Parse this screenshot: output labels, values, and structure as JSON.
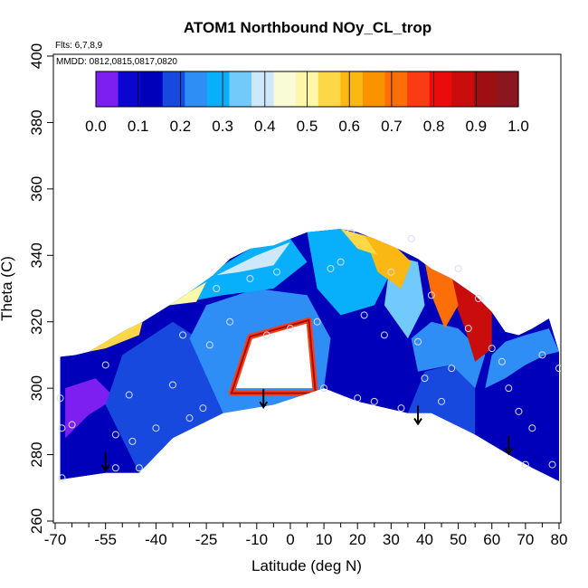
{
  "chart_data": {
    "type": "heatmap",
    "title": "ATOM1 Northbound NOy_CL_trop",
    "annotations": {
      "flights": "Flts: 6,7,8,9",
      "dates": "MMDD: 0812,0815,0817,0820"
    },
    "xlabel": "Latitude (deg N)",
    "ylabel": "Theta (C)",
    "xlim": [
      -70,
      80
    ],
    "ylim": [
      260,
      400
    ],
    "x_tick_labels": [
      -70,
      -55,
      -40,
      -25,
      -10,
      0,
      10,
      20,
      30,
      40,
      50,
      60,
      70,
      80
    ],
    "x_minor_ticks": [
      -65,
      -60,
      -50,
      -45,
      -35,
      -30,
      -20,
      -15,
      -5,
      5,
      15,
      25,
      35,
      45,
      55,
      65,
      75
    ],
    "y_ticks": [
      260,
      280,
      300,
      320,
      340,
      360,
      380,
      400
    ],
    "colorbar": {
      "min": 0.0,
      "max": 1.0,
      "ticks": [
        "0.0",
        "0.1",
        "0.2",
        "0.3",
        "0.4",
        "0.5",
        "0.6",
        "0.7",
        "0.8",
        "0.9",
        "1.0"
      ],
      "colors": [
        "#7d1ff0",
        "#0a06cf",
        "#0000ba",
        "#1749de",
        "#2f8ef6",
        "#08b0fb",
        "#72c9fb",
        "#cde8fb",
        "#f8fbd6",
        "#fef6a9",
        "#fcd848",
        "#fbb813",
        "#fb9200",
        "#fc6e07",
        "#fb3b13",
        "#ec0b0b",
        "#c90c0c",
        "#9e0f12",
        "#8c1620"
      ]
    },
    "field_outline_bottom": [
      [
        -68.5,
        272.5
      ],
      [
        -55,
        274.5
      ],
      [
        -45,
        274.5
      ],
      [
        -35,
        285
      ],
      [
        -20,
        292.5
      ],
      [
        -5,
        295
      ],
      [
        10,
        300
      ],
      [
        20,
        296
      ],
      [
        35,
        292.5
      ],
      [
        42,
        292.5
      ],
      [
        55,
        286
      ],
      [
        65,
        280
      ],
      [
        72,
        276
      ],
      [
        80,
        272
      ]
    ],
    "field_outline_top": [
      [
        80,
        311
      ],
      [
        77,
        321
      ],
      [
        72,
        318
      ],
      [
        68,
        316
      ],
      [
        64,
        317
      ],
      [
        60,
        323
      ],
      [
        55,
        328
      ],
      [
        48,
        333
      ],
      [
        42,
        336
      ],
      [
        38,
        339
      ],
      [
        32,
        342
      ],
      [
        25,
        345
      ],
      [
        20,
        347
      ],
      [
        15,
        348
      ],
      [
        5,
        347
      ],
      [
        0,
        345
      ],
      [
        -5,
        343
      ],
      [
        -12,
        342
      ],
      [
        -18,
        339
      ],
      [
        -23,
        334
      ],
      [
        -30,
        329
      ],
      [
        -36,
        325
      ],
      [
        -44,
        320
      ],
      [
        -50,
        317
      ],
      [
        -55,
        314
      ],
      [
        -60,
        311
      ],
      [
        -64,
        310
      ],
      [
        -68.5,
        309.5
      ]
    ],
    "regions": [
      {
        "value": 0.12,
        "points": [
          [
            -68.5,
            272.5
          ],
          [
            -55,
            274.5
          ],
          [
            -45,
            274.5
          ],
          [
            -40,
            285
          ],
          [
            -50,
            300
          ],
          [
            -60,
            305
          ],
          [
            -68.5,
            309.5
          ]
        ]
      },
      {
        "value": 0.03,
        "points": [
          [
            -67,
            285
          ],
          [
            -60,
            292
          ],
          [
            -52,
            297
          ],
          [
            -58,
            303
          ],
          [
            -67,
            300
          ]
        ]
      },
      {
        "value": 0.16,
        "points": [
          [
            -45,
            274.5
          ],
          [
            -35,
            285
          ],
          [
            -20,
            292.5
          ],
          [
            -20,
            310
          ],
          [
            -35,
            320
          ],
          [
            -50,
            310
          ],
          [
            -55,
            295
          ]
        ]
      },
      {
        "value": 0.22,
        "points": [
          [
            -20,
            292.5
          ],
          [
            -5,
            295
          ],
          [
            10,
            300
          ],
          [
            12,
            315
          ],
          [
            5,
            328
          ],
          [
            -10,
            330
          ],
          [
            -25,
            325
          ],
          [
            -30,
            315
          ]
        ]
      },
      {
        "value": 0.3,
        "points": [
          [
            -36,
            325
          ],
          [
            -25,
            334
          ],
          [
            -12,
            342
          ],
          [
            0,
            345
          ],
          [
            5,
            338
          ],
          [
            -5,
            330
          ],
          [
            -20,
            328
          ]
        ]
      },
      {
        "value": 0.42,
        "points": [
          [
            -22,
            334
          ],
          [
            -10,
            340
          ],
          [
            0,
            344
          ],
          [
            -5,
            337
          ],
          [
            -15,
            335
          ]
        ]
      },
      {
        "value": 0.15,
        "points": [
          [
            10,
            300
          ],
          [
            20,
            296
          ],
          [
            35,
            292.5
          ],
          [
            38,
            305
          ],
          [
            30,
            320
          ],
          [
            18,
            322
          ],
          [
            12,
            312
          ]
        ]
      },
      {
        "value": 0.3,
        "points": [
          [
            5,
            347
          ],
          [
            15,
            348
          ],
          [
            25,
            345
          ],
          [
            30,
            335
          ],
          [
            25,
            325
          ],
          [
            15,
            322
          ],
          [
            8,
            330
          ]
        ]
      },
      {
        "value": 0.35,
        "points": [
          [
            30,
            340
          ],
          [
            38,
            338
          ],
          [
            40,
            325
          ],
          [
            35,
            315
          ],
          [
            28,
            325
          ]
        ]
      },
      {
        "value": 0.18,
        "points": [
          [
            35,
            292.5
          ],
          [
            42,
            292.5
          ],
          [
            55,
            286
          ],
          [
            55,
            300
          ],
          [
            48,
            307
          ],
          [
            40,
            305
          ]
        ]
      },
      {
        "value": 0.26,
        "points": [
          [
            38,
            305
          ],
          [
            48,
            307
          ],
          [
            55,
            300
          ],
          [
            58,
            310
          ],
          [
            50,
            318
          ],
          [
            42,
            320
          ],
          [
            36,
            315
          ]
        ]
      },
      {
        "value": 0.12,
        "points": [
          [
            55,
            286
          ],
          [
            65,
            280
          ],
          [
            72,
            276
          ],
          [
            80,
            272
          ],
          [
            80,
            300
          ],
          [
            72,
            305
          ],
          [
            64,
            303
          ],
          [
            58,
            300
          ]
        ]
      },
      {
        "value": 0.24,
        "points": [
          [
            58,
            300
          ],
          [
            64,
            303
          ],
          [
            70,
            307
          ],
          [
            76,
            310
          ],
          [
            80,
            311
          ],
          [
            77,
            318
          ],
          [
            70,
            316
          ],
          [
            64,
            314
          ],
          [
            60,
            310
          ]
        ]
      },
      {
        "value": 0.62,
        "points": [
          [
            22,
            346
          ],
          [
            30,
            344
          ],
          [
            36,
            338
          ],
          [
            33,
            330
          ],
          [
            26,
            335
          ]
        ]
      },
      {
        "value": 0.55,
        "points": [
          [
            15,
            348
          ],
          [
            22,
            346
          ],
          [
            26,
            340
          ],
          [
            20,
            342
          ]
        ]
      },
      {
        "value": 0.85,
        "points": [
          [
            48,
            333
          ],
          [
            55,
            328
          ],
          [
            60,
            323
          ],
          [
            60,
            312
          ],
          [
            55,
            308
          ],
          [
            52,
            318
          ],
          [
            49,
            326
          ]
        ]
      },
      {
        "value": 0.7,
        "points": [
          [
            40,
            338
          ],
          [
            48,
            334
          ],
          [
            50,
            325
          ],
          [
            46,
            318
          ],
          [
            42,
            328
          ]
        ]
      },
      {
        "value": 0.55,
        "points": [
          [
            -60,
            311
          ],
          [
            -50,
            317
          ],
          [
            -44,
            320
          ],
          [
            -45,
            316
          ],
          [
            -55,
            312
          ]
        ]
      },
      {
        "value": 0.5,
        "points": [
          [
            -36,
            325
          ],
          [
            -30,
            329
          ],
          [
            -25,
            332
          ],
          [
            -28,
            326
          ]
        ]
      },
      {
        "value": 0.0,
        "points": [
          [
            -17.5,
            300
          ],
          [
            7.5,
            300
          ],
          [
            6,
            320
          ],
          [
            -12,
            315
          ]
        ]
      }
    ],
    "hole_outline": [
      [
        -17.5,
        298.5
      ],
      [
        7.5,
        298.5
      ],
      [
        5.5,
        320.5
      ],
      [
        -12,
        315.5
      ]
    ],
    "samples": [
      [
        -68.5,
        297
      ],
      [
        -68,
        288
      ],
      [
        -65,
        289
      ],
      [
        -68,
        273
      ],
      [
        -55,
        307
      ],
      [
        -52,
        286
      ],
      [
        -52,
        276
      ],
      [
        -48,
        298
      ],
      [
        -47,
        284
      ],
      [
        -45,
        276
      ],
      [
        -40,
        288
      ],
      [
        -35,
        301
      ],
      [
        -30,
        291
      ],
      [
        -32,
        316
      ],
      [
        -26,
        294
      ],
      [
        -24,
        313
      ],
      [
        -22,
        330
      ],
      [
        -18,
        320
      ],
      [
        -12,
        333
      ],
      [
        -7,
        316
      ],
      [
        -4,
        335
      ],
      [
        0,
        318
      ],
      [
        8,
        320
      ],
      [
        10,
        300
      ],
      [
        12,
        336
      ],
      [
        15,
        338
      ],
      [
        18,
        347
      ],
      [
        20,
        297
      ],
      [
        22,
        322
      ],
      [
        25,
        296
      ],
      [
        28,
        316
      ],
      [
        30,
        335
      ],
      [
        33,
        294
      ],
      [
        36,
        345
      ],
      [
        38,
        314
      ],
      [
        40,
        303
      ],
      [
        42,
        328
      ],
      [
        45,
        296
      ],
      [
        48,
        306
      ],
      [
        50,
        336
      ],
      [
        53,
        318
      ],
      [
        56,
        327
      ],
      [
        60,
        312
      ],
      [
        63,
        308
      ],
      [
        65,
        300
      ],
      [
        68,
        293
      ],
      [
        70,
        277
      ],
      [
        72,
        288
      ],
      [
        75,
        310
      ],
      [
        78,
        277
      ],
      [
        80,
        306
      ]
    ],
    "arrows": [
      [
        -55,
        278
      ],
      [
        -8,
        297
      ],
      [
        38,
        292
      ],
      [
        65,
        283
      ]
    ]
  }
}
